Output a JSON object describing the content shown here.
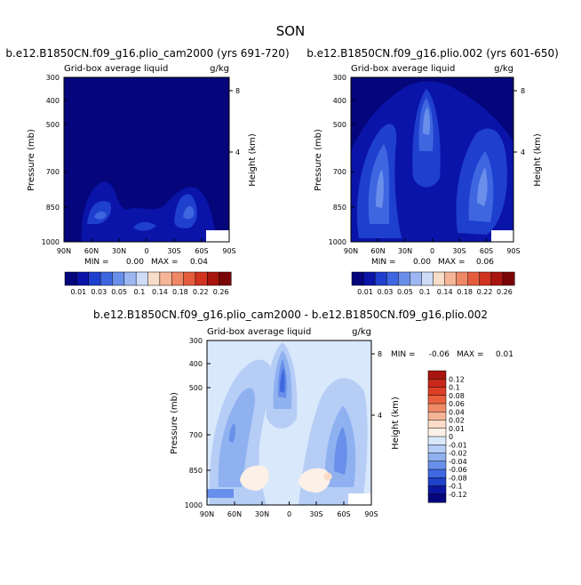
{
  "page": {
    "title": "SON"
  },
  "chart_data": [
    {
      "type": "heatmap",
      "title": "b.e12.B1850CN.f09_g16.plio_cam2000 (yrs 691-720)",
      "left_label": "Grid-box average liquid",
      "right_label": "g/kg",
      "ylabel": "Pressure (mb)",
      "ylabel_right": "Height (km)",
      "x_ticks": [
        "90N",
        "60N",
        "30N",
        "0",
        "30S",
        "60S",
        "90S"
      ],
      "y_ticks": [
        "300",
        "400",
        "500",
        "700",
        "850",
        "1000"
      ],
      "height_ticks": [
        "8",
        "4"
      ],
      "stats": {
        "min_label": "MIN =",
        "min": "0.00",
        "max_label": "MAX =",
        "max": "0.04"
      },
      "colorbar": {
        "labels": [
          "0.01",
          "0.03",
          "0.05",
          "0.1",
          "0.14",
          "0.18",
          "0.22",
          "0.26"
        ],
        "colors": [
          "#05057c",
          "#0a14a8",
          "#1f3fce",
          "#3e66e0",
          "#6a8fea",
          "#9db7f2",
          "#cfdcf8",
          "#f8ddc8",
          "#f5b597",
          "#ef8866",
          "#e45c3c",
          "#d0331f",
          "#a8150e",
          "#7a0507"
        ]
      }
    },
    {
      "type": "heatmap",
      "title": "b.e12.B1850CN.f09_g16.plio.002 (yrs 601-650)",
      "left_label": "Grid-box average liquid",
      "right_label": "g/kg",
      "ylabel": "Pressure (mb)",
      "ylabel_right": "Height (km)",
      "x_ticks": [
        "90N",
        "60N",
        "30N",
        "0",
        "30S",
        "60S",
        "90S"
      ],
      "y_ticks": [
        "300",
        "400",
        "500",
        "700",
        "850",
        "1000"
      ],
      "height_ticks": [
        "8",
        "4"
      ],
      "stats": {
        "min_label": "MIN =",
        "min": "0.00",
        "max_label": "MAX =",
        "max": "0.06"
      },
      "colorbar": {
        "labels": [
          "0.01",
          "0.03",
          "0.05",
          "0.1",
          "0.14",
          "0.18",
          "0.22",
          "0.26"
        ],
        "colors": [
          "#05057c",
          "#0a14a8",
          "#1f3fce",
          "#3e66e0",
          "#6a8fea",
          "#9db7f2",
          "#cfdcf8",
          "#f8ddc8",
          "#f5b597",
          "#ef8866",
          "#e45c3c",
          "#d0331f",
          "#a8150e",
          "#7a0507"
        ]
      }
    },
    {
      "type": "heatmap",
      "title": "b.e12.B1850CN.f09_g16.plio_cam2000 - b.e12.B1850CN.f09_g16.plio.002",
      "left_label": "Grid-box average liquid",
      "right_label": "g/kg",
      "ylabel": "Pressure (mb)",
      "ylabel_right": "Height (km)",
      "x_ticks": [
        "90N",
        "60N",
        "30N",
        "0",
        "30S",
        "60S",
        "90S"
      ],
      "y_ticks": [
        "300",
        "400",
        "500",
        "700",
        "850",
        "1000"
      ],
      "height_ticks": [
        "8",
        "4"
      ],
      "stats": {
        "min_label": "MIN =",
        "min": "-0.06",
        "max_label": "MAX =",
        "max": "0.01"
      },
      "colorbar": {
        "labels": [
          "0.12",
          "0.1",
          "0.08",
          "0.06",
          "0.04",
          "0.02",
          "0.01",
          "0",
          "-0.01",
          "-0.02",
          "-0.04",
          "-0.06",
          "-0.08",
          "-0.1",
          "-0.12"
        ],
        "colors": [
          "#a8150e",
          "#c7281a",
          "#dc3f25",
          "#e8603d",
          "#f08a66",
          "#f6b497",
          "#fbdcc8",
          "#fdf0e6",
          "#d9e8fb",
          "#b6cdf6",
          "#8fb1f0",
          "#6890ea",
          "#3f69e0",
          "#1f40c8",
          "#0b17a0",
          "#05057c"
        ]
      }
    }
  ]
}
